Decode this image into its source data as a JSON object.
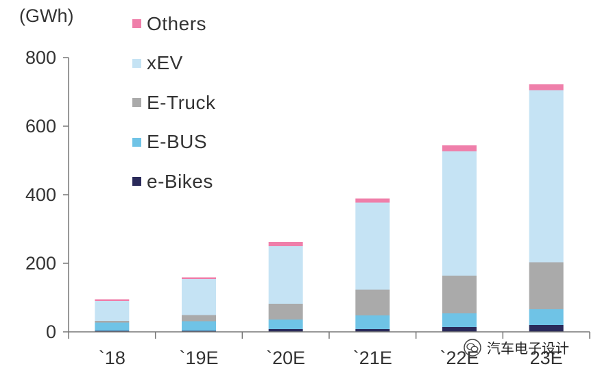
{
  "chart_data": {
    "type": "bar",
    "stacked": true,
    "unit_label": "(GWh)",
    "categories": [
      "`18",
      "`19E",
      "`20E",
      "`21E",
      "`22E",
      "23E"
    ],
    "yticks": [
      "0",
      "200",
      "400",
      "600",
      "800"
    ],
    "ylim": [
      0,
      800
    ],
    "series": [
      {
        "name": "e-Bikes",
        "color": "#2a2a5a",
        "values": [
          3,
          3,
          8,
          8,
          14,
          20
        ]
      },
      {
        "name": "E-BUS",
        "color": "#6fc3e6",
        "values": [
          24,
          28,
          28,
          40,
          40,
          46
        ]
      },
      {
        "name": "E-Truck",
        "color": "#aaaaaa",
        "values": [
          5,
          18,
          46,
          75,
          110,
          137
        ]
      },
      {
        "name": "xEV",
        "color": "#c5e3f4",
        "values": [
          58,
          105,
          168,
          254,
          363,
          502
        ]
      },
      {
        "name": "Others",
        "color": "#ef7faa",
        "values": [
          5,
          5,
          12,
          12,
          17,
          17
        ]
      }
    ],
    "legend_order": [
      "Others",
      "xEV",
      "E-Truck",
      "E-BUS",
      "e-Bikes"
    ],
    "legend_position": "top-left"
  },
  "watermark": {
    "text": "汽车电子设计",
    "icon": "wechat-icon"
  }
}
